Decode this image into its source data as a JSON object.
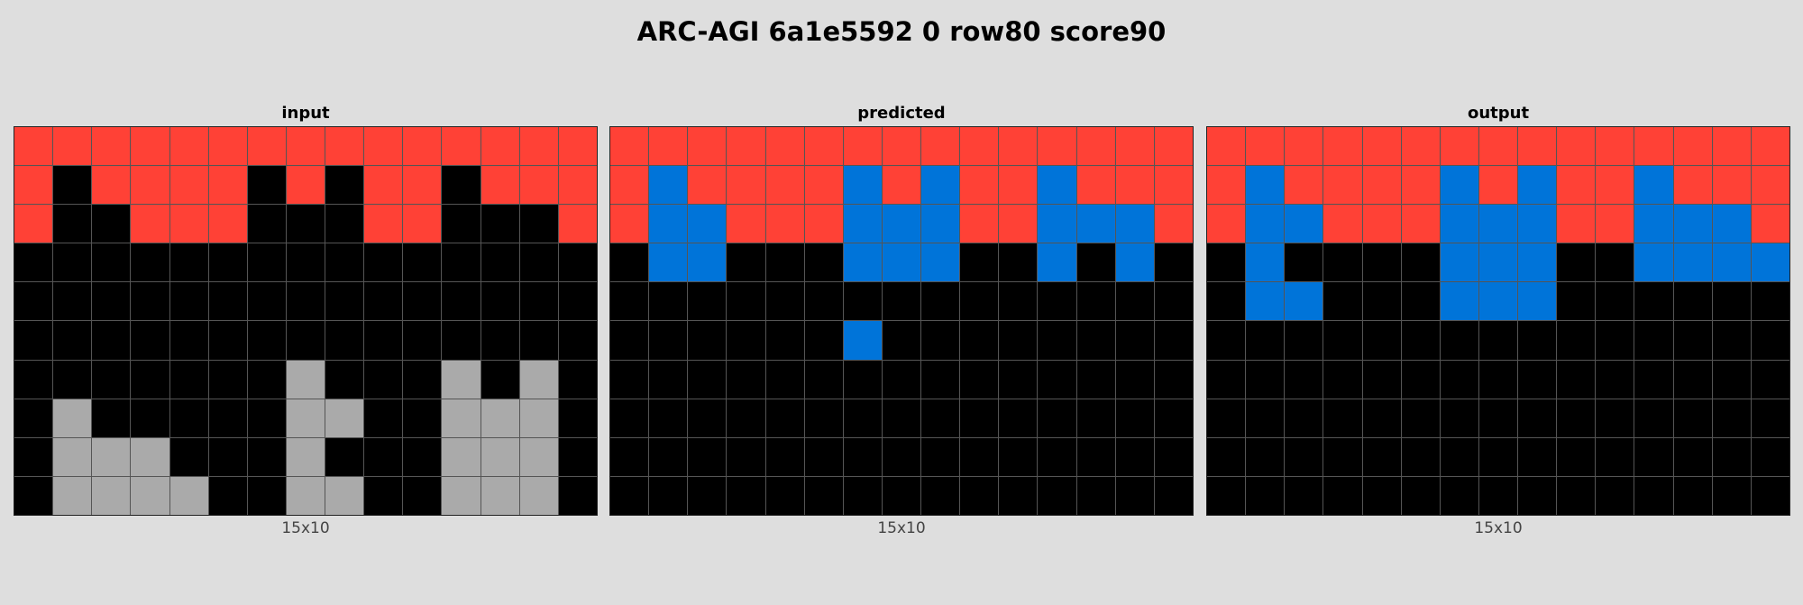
{
  "title": "ARC-AGI 6a1e5592 0 row80 score90",
  "palette": {
    "0": "#000000",
    "1": "#0074d9",
    "2": "#ff4136",
    "5": "#aaaaaa"
  },
  "panels": [
    {
      "title": "input",
      "caption": "15x10",
      "grid": [
        [
          2,
          2,
          2,
          2,
          2,
          2,
          2,
          2,
          2,
          2,
          2,
          2,
          2,
          2,
          2
        ],
        [
          2,
          0,
          2,
          2,
          2,
          2,
          0,
          2,
          0,
          2,
          2,
          0,
          2,
          2,
          2
        ],
        [
          2,
          0,
          0,
          2,
          2,
          2,
          0,
          0,
          0,
          2,
          2,
          0,
          0,
          0,
          2
        ],
        [
          0,
          0,
          0,
          0,
          0,
          0,
          0,
          0,
          0,
          0,
          0,
          0,
          0,
          0,
          0
        ],
        [
          0,
          0,
          0,
          0,
          0,
          0,
          0,
          0,
          0,
          0,
          0,
          0,
          0,
          0,
          0
        ],
        [
          0,
          0,
          0,
          0,
          0,
          0,
          0,
          0,
          0,
          0,
          0,
          0,
          0,
          0,
          0
        ],
        [
          0,
          0,
          0,
          0,
          0,
          0,
          0,
          5,
          0,
          0,
          0,
          5,
          0,
          5,
          0
        ],
        [
          0,
          5,
          0,
          0,
          0,
          0,
          0,
          5,
          5,
          0,
          0,
          5,
          5,
          5,
          0
        ],
        [
          0,
          5,
          5,
          5,
          0,
          0,
          0,
          5,
          0,
          0,
          0,
          5,
          5,
          5,
          0
        ],
        [
          0,
          5,
          5,
          5,
          5,
          0,
          0,
          5,
          5,
          0,
          0,
          5,
          5,
          5,
          0
        ]
      ]
    },
    {
      "title": "predicted",
      "caption": "15x10",
      "grid": [
        [
          2,
          2,
          2,
          2,
          2,
          2,
          2,
          2,
          2,
          2,
          2,
          2,
          2,
          2,
          2
        ],
        [
          2,
          1,
          2,
          2,
          2,
          2,
          1,
          2,
          1,
          2,
          2,
          1,
          2,
          2,
          2
        ],
        [
          2,
          1,
          1,
          2,
          2,
          2,
          1,
          1,
          1,
          2,
          2,
          1,
          1,
          1,
          2
        ],
        [
          0,
          1,
          1,
          0,
          0,
          0,
          1,
          1,
          1,
          0,
          0,
          1,
          0,
          1,
          0
        ],
        [
          0,
          0,
          0,
          0,
          0,
          0,
          0,
          0,
          0,
          0,
          0,
          0,
          0,
          0,
          0
        ],
        [
          0,
          0,
          0,
          0,
          0,
          0,
          1,
          0,
          0,
          0,
          0,
          0,
          0,
          0,
          0
        ],
        [
          0,
          0,
          0,
          0,
          0,
          0,
          0,
          0,
          0,
          0,
          0,
          0,
          0,
          0,
          0
        ],
        [
          0,
          0,
          0,
          0,
          0,
          0,
          0,
          0,
          0,
          0,
          0,
          0,
          0,
          0,
          0
        ],
        [
          0,
          0,
          0,
          0,
          0,
          0,
          0,
          0,
          0,
          0,
          0,
          0,
          0,
          0,
          0
        ],
        [
          0,
          0,
          0,
          0,
          0,
          0,
          0,
          0,
          0,
          0,
          0,
          0,
          0,
          0,
          0
        ]
      ]
    },
    {
      "title": "output",
      "caption": "15x10",
      "grid": [
        [
          2,
          2,
          2,
          2,
          2,
          2,
          2,
          2,
          2,
          2,
          2,
          2,
          2,
          2,
          2
        ],
        [
          2,
          1,
          2,
          2,
          2,
          2,
          1,
          2,
          1,
          2,
          2,
          1,
          2,
          2,
          2
        ],
        [
          2,
          1,
          1,
          2,
          2,
          2,
          1,
          1,
          1,
          2,
          2,
          1,
          1,
          1,
          2
        ],
        [
          0,
          1,
          0,
          0,
          0,
          0,
          1,
          1,
          1,
          0,
          0,
          1,
          1,
          1,
          1
        ],
        [
          0,
          1,
          1,
          0,
          0,
          0,
          1,
          1,
          1,
          0,
          0,
          0,
          0,
          0,
          0
        ],
        [
          0,
          0,
          0,
          0,
          0,
          0,
          0,
          0,
          0,
          0,
          0,
          0,
          0,
          0,
          0
        ],
        [
          0,
          0,
          0,
          0,
          0,
          0,
          0,
          0,
          0,
          0,
          0,
          0,
          0,
          0,
          0
        ],
        [
          0,
          0,
          0,
          0,
          0,
          0,
          0,
          0,
          0,
          0,
          0,
          0,
          0,
          0,
          0
        ],
        [
          0,
          0,
          0,
          0,
          0,
          0,
          0,
          0,
          0,
          0,
          0,
          0,
          0,
          0,
          0
        ],
        [
          0,
          0,
          0,
          0,
          0,
          0,
          0,
          0,
          0,
          0,
          0,
          0,
          0,
          0,
          0
        ]
      ]
    }
  ]
}
